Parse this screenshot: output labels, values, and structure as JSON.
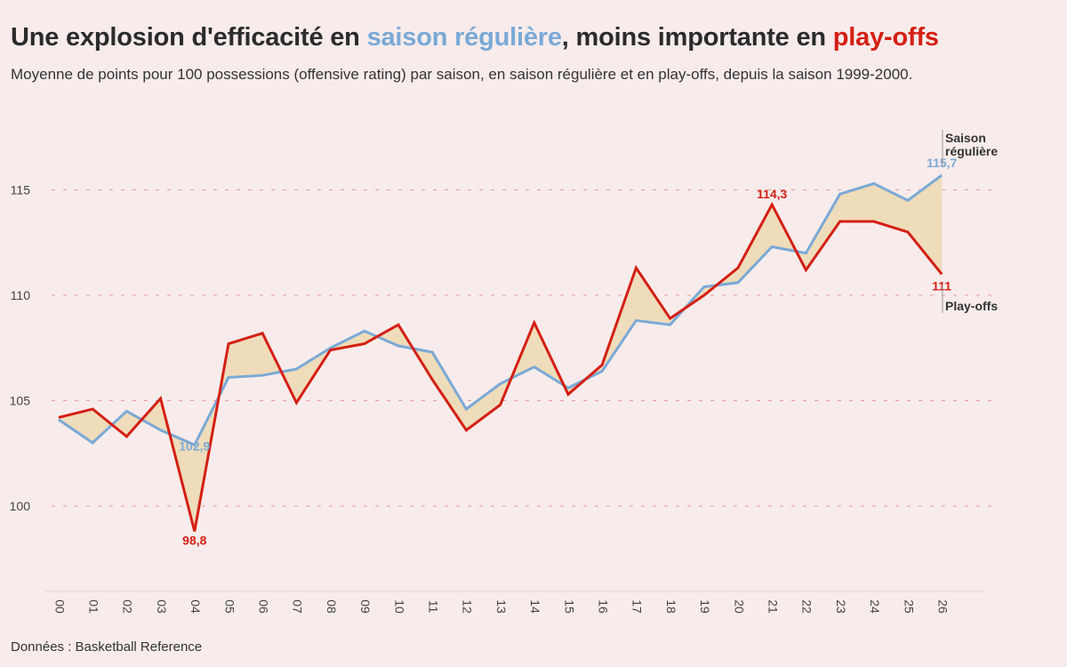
{
  "title": {
    "part1": "Une explosion d'efficacité en ",
    "part2": "saison régulière",
    "part3": ", moins importante en ",
    "part4": "play-offs"
  },
  "subtitle": "Moyenne de points pour 100 possessions (offensive rating) par saison, en saison régulière et en play-offs, depuis la saison 1999-2000.",
  "source": "Données : Basketball Reference",
  "colors": {
    "background": "#f7eceb",
    "regular": "#7aa9d6",
    "playoffs": "#d41f14",
    "fill": "#efdcba",
    "grid": "#e89a9a"
  },
  "chart_data": {
    "type": "line",
    "title": "Une explosion d'efficacité en saison régulière, moins importante en play-offs",
    "xlabel": "",
    "ylabel": "",
    "x": [
      "00",
      "01",
      "02",
      "03",
      "04",
      "05",
      "06",
      "07",
      "08",
      "09",
      "10",
      "11",
      "12",
      "13",
      "14",
      "15",
      "16",
      "17",
      "18",
      "19",
      "20",
      "21",
      "22",
      "23",
      "24",
      "25",
      "26"
    ],
    "ylim": [
      96.1,
      119
    ],
    "yticks": [
      100,
      105,
      110,
      115
    ],
    "grid": "horizontal dashed",
    "series": [
      {
        "name": "Saison régulière",
        "values": [
          104.1,
          103.0,
          104.5,
          103.6,
          102.9,
          106.1,
          106.2,
          106.5,
          107.5,
          108.3,
          107.6,
          107.3,
          104.6,
          105.8,
          106.6,
          105.6,
          106.4,
          108.8,
          108.6,
          110.4,
          110.6,
          112.3,
          112.0,
          114.8,
          115.3,
          114.5,
          115.7
        ]
      },
      {
        "name": "Play-offs",
        "values": [
          104.2,
          104.6,
          103.3,
          105.1,
          98.8,
          107.7,
          108.2,
          104.9,
          107.4,
          107.7,
          108.6,
          106.0,
          103.6,
          104.8,
          108.7,
          105.3,
          106.7,
          111.3,
          108.9,
          110.0,
          111.3,
          114.3,
          111.2,
          113.5,
          113.5,
          113.0,
          111.0
        ]
      }
    ],
    "annotations": [
      {
        "text": "102,9",
        "series": "Saison régulière",
        "x": "04"
      },
      {
        "text": "98,8",
        "series": "Play-offs",
        "x": "04"
      },
      {
        "text": "114,3",
        "series": "Play-offs",
        "x": "21"
      },
      {
        "text": "115,7",
        "series": "Saison régulière",
        "x": "26"
      },
      {
        "text": "111",
        "series": "Play-offs",
        "x": "26"
      }
    ],
    "end_labels": {
      "regular_line1": "Saison",
      "regular_line2": "régulière",
      "playoffs": "Play-offs"
    }
  }
}
